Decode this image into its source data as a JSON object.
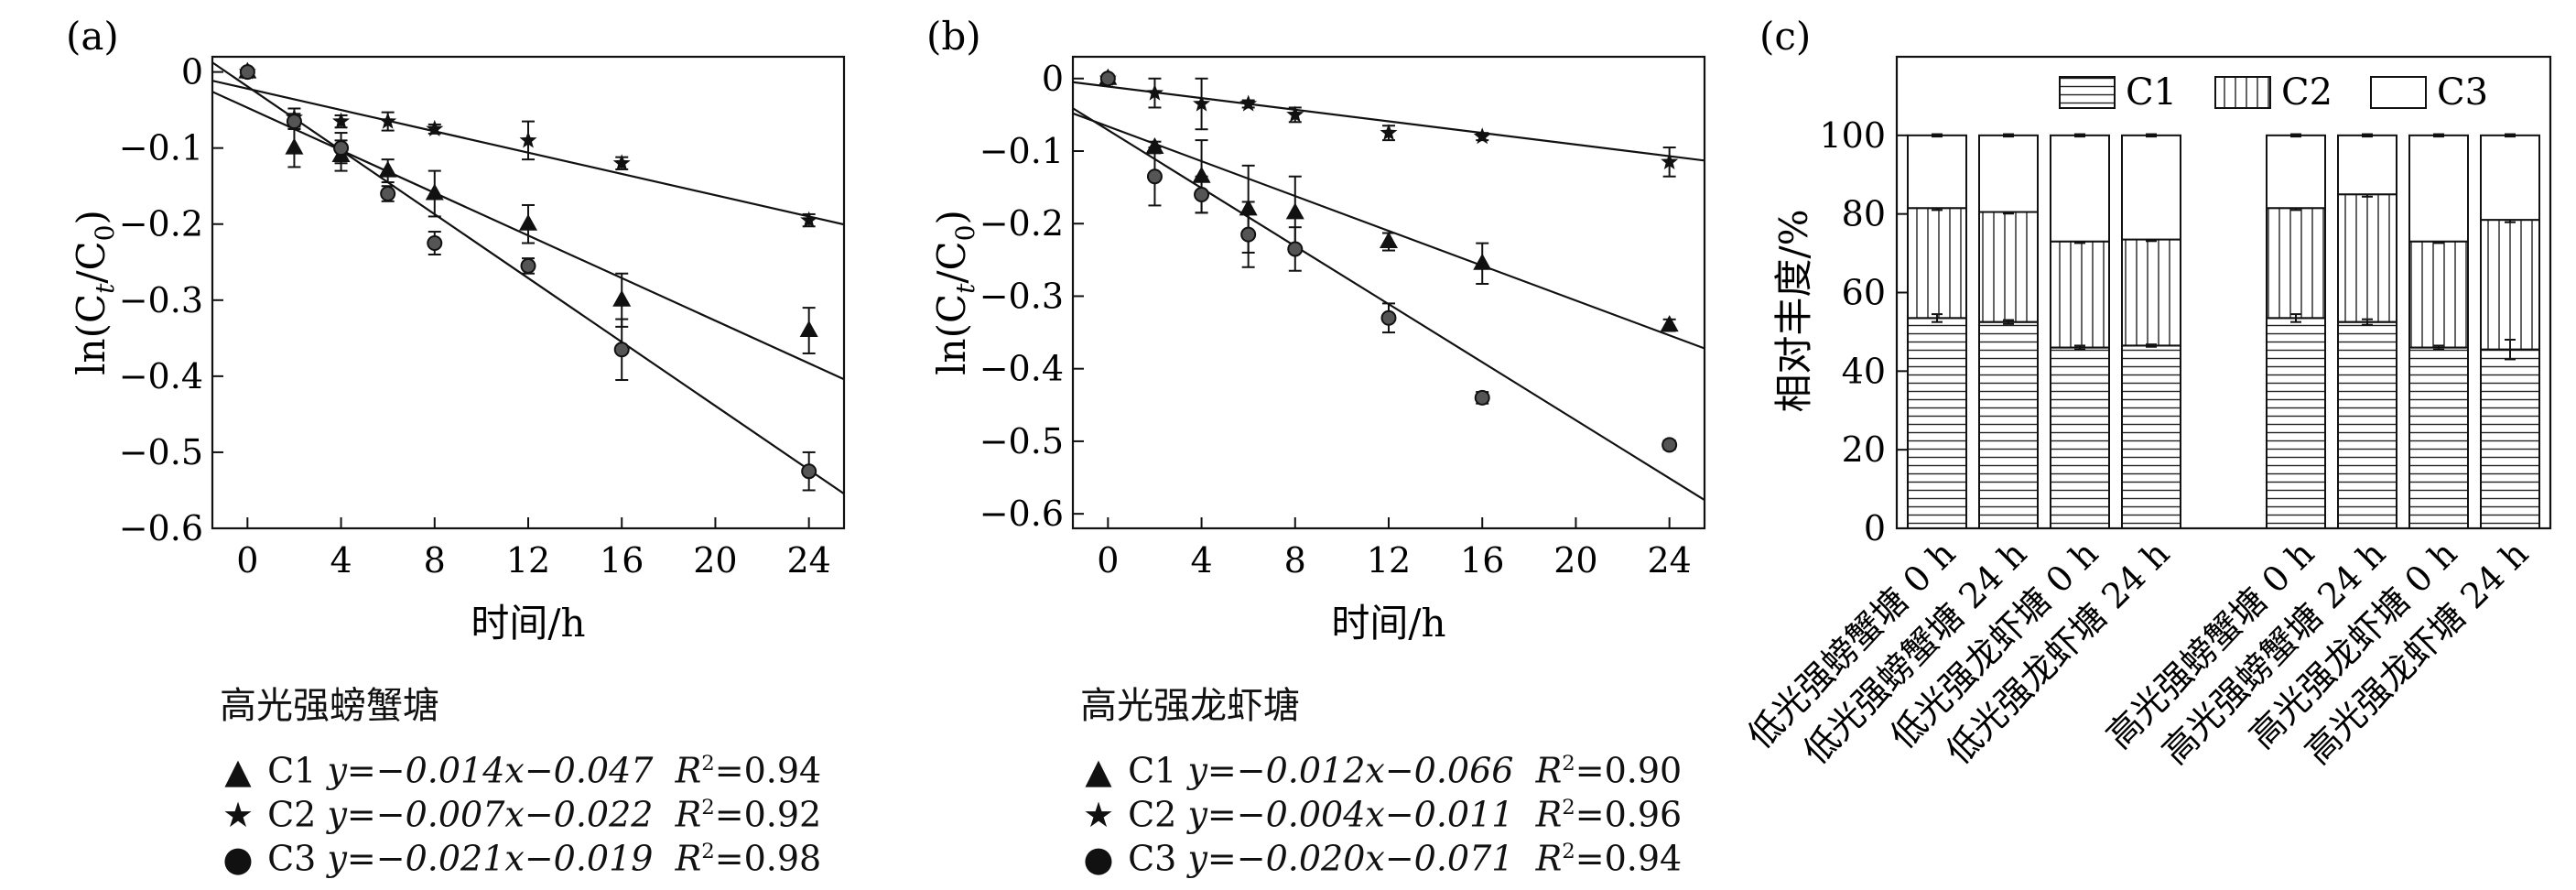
{
  "panels": [
    {
      "id": "a",
      "label": "(a)",
      "xlabel": "时间/h",
      "ylabel": "ln(Ct/C0)",
      "xlim": [
        -1.5,
        25.5
      ],
      "ylim": [
        -0.6,
        0.02
      ],
      "xticks": [
        0,
        4,
        8,
        12,
        16,
        20,
        24
      ],
      "yticks": [
        0,
        -0.1,
        -0.2,
        -0.3,
        -0.4,
        -0.5,
        -0.6
      ],
      "ytick_labels": [
        "0",
        "−0.1",
        "−0.2",
        "−0.3",
        "−0.4",
        "−0.5",
        "−0.6"
      ],
      "legend_title": "高光强螃蟹塘",
      "series": [
        {
          "name": "C1",
          "marker": "triangle",
          "eq": "y=−0.014x−0.047",
          "r2": "0.94",
          "slope": -0.014,
          "intercept": -0.047,
          "x": [
            0,
            2,
            4,
            6,
            8,
            12,
            16,
            24
          ],
          "y": [
            0,
            -0.1,
            -0.11,
            -0.13,
            -0.16,
            -0.2,
            -0.3,
            -0.34
          ],
          "err": [
            0.005,
            0.025,
            0.02,
            0.015,
            0.03,
            0.025,
            0.035,
            0.03
          ]
        },
        {
          "name": "C2",
          "marker": "star",
          "eq": "y=−0.007x−0.022",
          "r2": "0.92",
          "slope": -0.007,
          "intercept": -0.022,
          "x": [
            0,
            2,
            4,
            6,
            8,
            12,
            16,
            24
          ],
          "y": [
            0,
            -0.06,
            -0.065,
            -0.065,
            -0.075,
            -0.09,
            -0.12,
            -0.195
          ],
          "err": [
            0.005,
            0.012,
            0.008,
            0.012,
            0.006,
            0.025,
            0.008,
            0.008
          ]
        },
        {
          "name": "C3",
          "marker": "circle",
          "eq": "y=−0.021x−0.019",
          "r2": "0.98",
          "slope": -0.021,
          "intercept": -0.019,
          "x": [
            0,
            2,
            4,
            6,
            8,
            12,
            16,
            24
          ],
          "y": [
            0,
            -0.065,
            -0.1,
            -0.16,
            -0.225,
            -0.255,
            -0.365,
            -0.525
          ],
          "err": [
            0.005,
            0.01,
            0.02,
            0.01,
            0.015,
            0.01,
            0.04,
            0.025
          ]
        }
      ]
    },
    {
      "id": "b",
      "label": "(b)",
      "xlabel": "时间/h",
      "ylabel": "ln(Ct/C0)",
      "xlim": [
        -1.5,
        25.5
      ],
      "ylim": [
        -0.62,
        0.03
      ],
      "xticks": [
        0,
        4,
        8,
        12,
        16,
        20,
        24
      ],
      "yticks": [
        0,
        -0.1,
        -0.2,
        -0.3,
        -0.4,
        -0.5,
        -0.6
      ],
      "ytick_labels": [
        "0",
        "−0.1",
        "−0.2",
        "−0.3",
        "−0.4",
        "−0.5",
        "−0.6"
      ],
      "legend_title": "高光强龙虾塘",
      "series": [
        {
          "name": "C1",
          "marker": "triangle",
          "eq": "y=−0.012x−0.066",
          "r2": "0.90",
          "slope": -0.012,
          "intercept": -0.066,
          "x": [
            0,
            2,
            4,
            6,
            8,
            12,
            16,
            24
          ],
          "y": [
            0,
            -0.095,
            -0.135,
            -0.18,
            -0.185,
            -0.225,
            -0.255,
            -0.34
          ],
          "err": [
            0.005,
            0.008,
            0.05,
            0.06,
            0.05,
            0.012,
            0.028,
            0.008
          ]
        },
        {
          "name": "C2",
          "marker": "star",
          "eq": "y=−0.004x−0.011",
          "r2": "0.96",
          "slope": -0.004,
          "intercept": -0.011,
          "x": [
            0,
            2,
            4,
            6,
            8,
            12,
            16,
            24
          ],
          "y": [
            0,
            -0.02,
            -0.035,
            -0.035,
            -0.05,
            -0.075,
            -0.08,
            -0.115
          ],
          "err": [
            0.005,
            0.02,
            0.035,
            0.005,
            0.01,
            0.01,
            0.005,
            0.02
          ]
        },
        {
          "name": "C3",
          "marker": "circle",
          "eq": "y=−0.020x−0.071",
          "r2": "0.94",
          "slope": -0.02,
          "intercept": -0.071,
          "x": [
            0,
            2,
            4,
            6,
            8,
            12,
            16,
            24
          ],
          "y": [
            0,
            -0.135,
            -0.16,
            -0.215,
            -0.235,
            -0.33,
            -0.44,
            -0.505
          ],
          "err": [
            0.005,
            0.04,
            0.025,
            0.045,
            0.03,
            0.02,
            0.008,
            0.006
          ]
        }
      ]
    }
  ],
  "chart_data": {
    "type": "bar",
    "stacked": true,
    "label": "(c)",
    "ylabel": "相对丰度/%",
    "ylim": [
      0,
      120
    ],
    "yticks": [
      0,
      20,
      40,
      60,
      80,
      100
    ],
    "categories": [
      "低光强螃蟹塘 0 h",
      "低光强螃蟹塘 24 h",
      "低光强龙虾塘 0 h",
      "低光强龙虾塘 24 h",
      "高光强螃蟹塘 0 h",
      "高光强螃蟹塘 24 h",
      "高光强龙虾塘 0 h",
      "高光强龙虾塘 24 h"
    ],
    "legend": [
      "C1",
      "C2",
      "C3"
    ],
    "legend_position": "top",
    "series": [
      {
        "name": "C1",
        "pattern": "horizontal-lines",
        "values": [
          53.5,
          52.5,
          46,
          46.5,
          53.5,
          52.5,
          46,
          45.5
        ],
        "err": [
          1.0,
          0.5,
          0.5,
          0.3,
          1.0,
          0.7,
          0.5,
          2.5
        ]
      },
      {
        "name": "C2",
        "pattern": "vertical-lines",
        "values": [
          28,
          28,
          27,
          27,
          28,
          32.5,
          27,
          33
        ],
        "err": [
          0.5,
          0.4,
          0.4,
          0.4,
          0.5,
          0.6,
          0.4,
          0.6
        ]
      },
      {
        "name": "C3",
        "pattern": "blank",
        "values": [
          18.5,
          19.5,
          27,
          26.5,
          18.5,
          15,
          27,
          21.5
        ],
        "err": [
          0.3,
          0.3,
          0.3,
          0.3,
          0.3,
          0.3,
          0.3,
          0.3
        ]
      }
    ]
  },
  "colors": {
    "ink": "#111111",
    "background": "#ffffff"
  }
}
